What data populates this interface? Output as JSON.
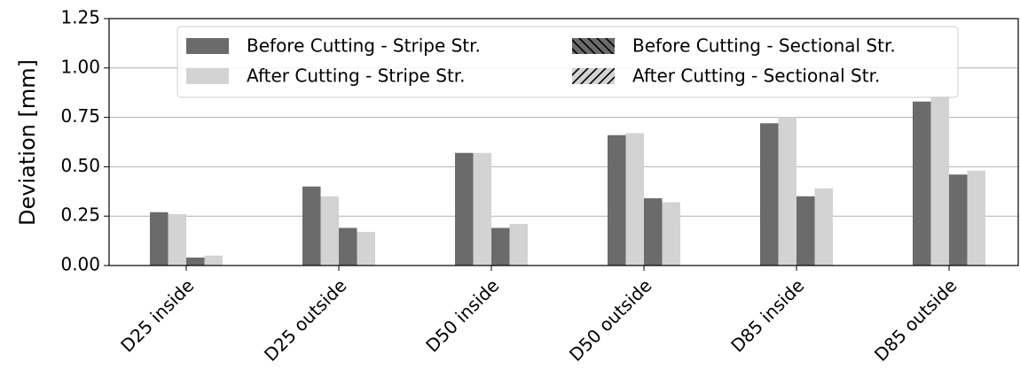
{
  "chart_data": {
    "type": "bar",
    "y_label": "Deviation [mm]",
    "categories": [
      "D25 inside",
      "D25 outside",
      "D50 inside",
      "D50 outside",
      "D85 inside",
      "D85 outside"
    ],
    "series": [
      {
        "name": "Before Cutting - Stripe Str.",
        "color": "#6b6b6b",
        "hatch": "",
        "values": [
          0.27,
          0.4,
          0.57,
          0.66,
          0.72,
          0.83
        ]
      },
      {
        "name": "After Cutting - Stripe Str.",
        "color": "#d3d3d3",
        "hatch": "",
        "values": [
          0.26,
          0.35,
          0.57,
          0.67,
          0.75,
          0.86
        ]
      },
      {
        "name": "Before Cutting - Sectional Str.",
        "color": "#6b6b6b",
        "hatch": "\\\\",
        "values": [
          0.04,
          0.19,
          0.19,
          0.34,
          0.35,
          0.46
        ]
      },
      {
        "name": "After Cutting - Sectional Str.",
        "color": "#d3d3d3",
        "hatch": "//",
        "values": [
          0.05,
          0.17,
          0.21,
          0.32,
          0.39,
          0.48
        ]
      }
    ],
    "ylim": [
      0,
      1.25
    ],
    "yticks": [
      {
        "value": 0,
        "label": "0.00"
      },
      {
        "value": 0.25,
        "label": "0.25"
      },
      {
        "value": 0.5,
        "label": "0.50"
      },
      {
        "value": 0.75,
        "label": "0.75"
      },
      {
        "value": 1,
        "label": "1.00"
      },
      {
        "value": 1.25,
        "label": "1.25"
      }
    ],
    "grid": true,
    "legend": "upper center"
  }
}
